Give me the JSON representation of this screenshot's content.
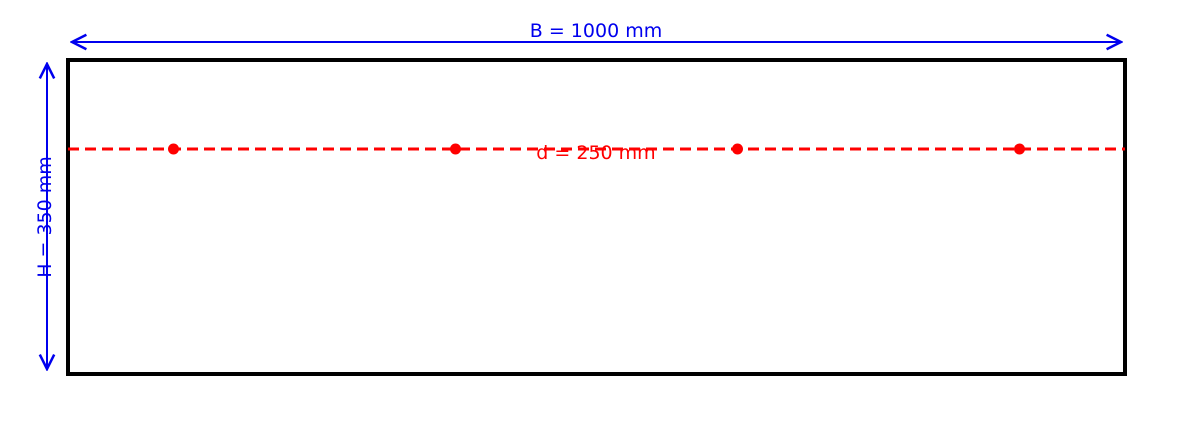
{
  "labels": {
    "width": "B = 1000 mm",
    "height": "H = 350 mm",
    "depth": "d = 250 mm"
  },
  "colors": {
    "dimension": "#0000ee",
    "rebar": "#ff0000",
    "outline": "#000000"
  },
  "section": {
    "width_mm": 1000,
    "height_mm": 350,
    "effective_depth_mm": 250,
    "bar_count": 4
  }
}
